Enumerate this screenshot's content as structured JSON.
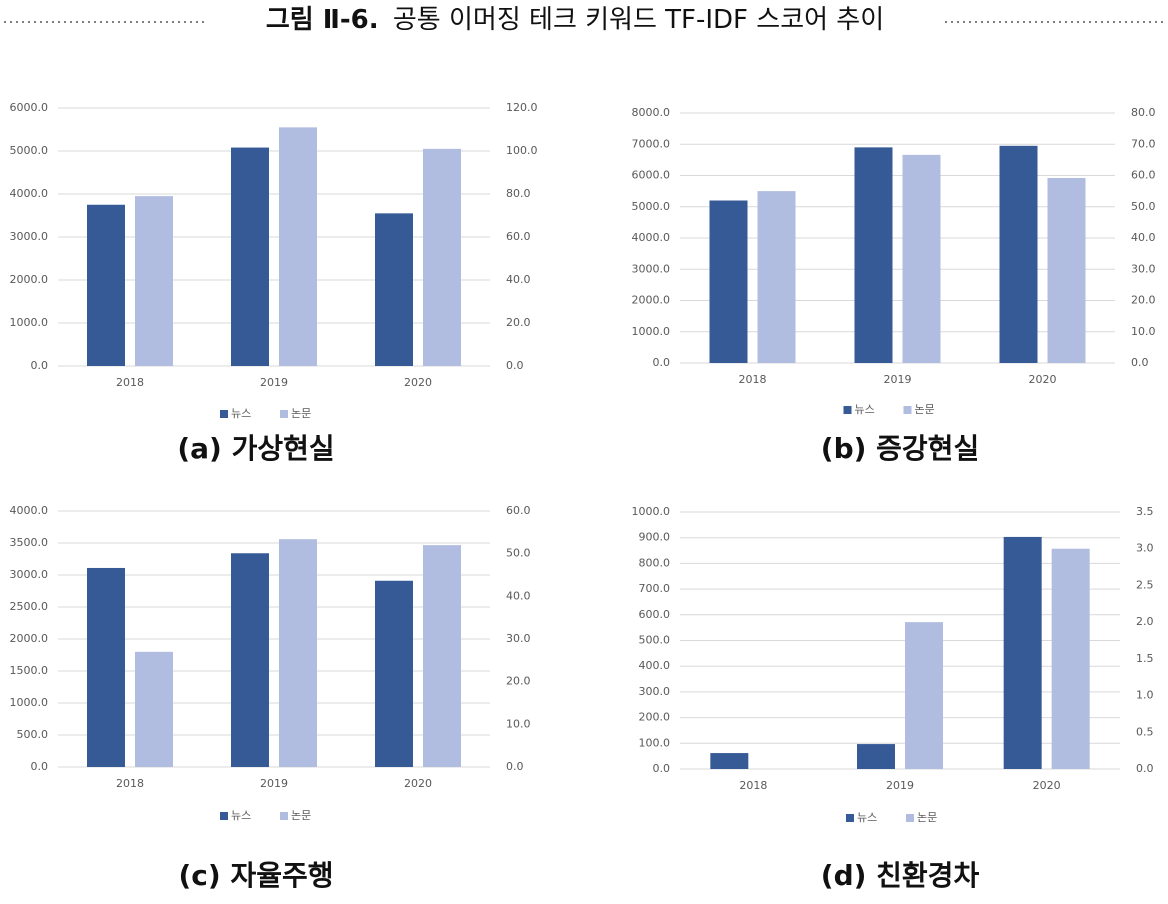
{
  "figure_label": "그림 Ⅱ-6.",
  "title": "공통 이머징 테크 키워드 TF-IDF 스코어 추이",
  "chart_data": [
    {
      "type": "bar",
      "title": "(a) 가상현실",
      "categories": [
        "2018",
        "2019",
        "2020"
      ],
      "series": [
        {
          "name": "뉴스",
          "color": "#365a96",
          "values": [
            3750,
            5080,
            3550
          ]
        },
        {
          "name": "논문",
          "color": "#b0bde0",
          "values": [
            79,
            111,
            101
          ],
          "axis": "y2"
        }
      ],
      "ylim": [
        0,
        6000
      ],
      "yticks": [
        {
          "value": 0,
          "label": "0.0"
        },
        {
          "value": 1000,
          "label": "1000.0"
        },
        {
          "value": 2000,
          "label": "2000.0"
        },
        {
          "value": 3000,
          "label": "3000.0"
        },
        {
          "value": 4000,
          "label": "4000.0"
        },
        {
          "value": 5000,
          "label": "5000.0"
        },
        {
          "value": 6000,
          "label": "6000.0"
        }
      ],
      "y2lim": [
        0,
        120
      ],
      "y2ticks": [
        {
          "value": 0,
          "label": "0.0"
        },
        {
          "value": 20,
          "label": "20.0"
        },
        {
          "value": 40,
          "label": "40.0"
        },
        {
          "value": 60,
          "label": "60.0"
        },
        {
          "value": 80,
          "label": "80.0"
        },
        {
          "value": 100,
          "label": "100.0"
        },
        {
          "value": 120,
          "label": "120.0"
        }
      ],
      "grid": true,
      "legend": "bottom"
    },
    {
      "type": "bar",
      "title": "(b) 증강현실",
      "categories": [
        "2018",
        "2019",
        "2020"
      ],
      "series": [
        {
          "name": "뉴스",
          "color": "#365a96",
          "values": [
            5200,
            6900,
            6950
          ]
        },
        {
          "name": "논문",
          "color": "#b0bde0",
          "values": [
            55,
            66.6,
            59.2
          ],
          "axis": "y2"
        }
      ],
      "ylim": [
        0,
        8000
      ],
      "yticks": [
        {
          "value": 0,
          "label": "0.0"
        },
        {
          "value": 1000,
          "label": "1000.0"
        },
        {
          "value": 2000,
          "label": "2000.0"
        },
        {
          "value": 3000,
          "label": "3000.0"
        },
        {
          "value": 4000,
          "label": "4000.0"
        },
        {
          "value": 5000,
          "label": "5000.0"
        },
        {
          "value": 6000,
          "label": "6000.0"
        },
        {
          "value": 7000,
          "label": "7000.0"
        },
        {
          "value": 8000,
          "label": "8000.0"
        }
      ],
      "y2lim": [
        0,
        80
      ],
      "y2ticks": [
        {
          "value": 0,
          "label": "0.0"
        },
        {
          "value": 10,
          "label": "10.0"
        },
        {
          "value": 20,
          "label": "20.0"
        },
        {
          "value": 30,
          "label": "30.0"
        },
        {
          "value": 40,
          "label": "40.0"
        },
        {
          "value": 50,
          "label": "50.0"
        },
        {
          "value": 60,
          "label": "60.0"
        },
        {
          "value": 70,
          "label": "70.0"
        },
        {
          "value": 80,
          "label": "80.0"
        }
      ],
      "grid": true,
      "legend": "bottom"
    },
    {
      "type": "bar",
      "title": "(c) 자율주행",
      "categories": [
        "2018",
        "2019",
        "2020"
      ],
      "series": [
        {
          "name": "뉴스",
          "color": "#365a96",
          "values": [
            3110,
            3340,
            2910
          ]
        },
        {
          "name": "논문",
          "color": "#b0bde0",
          "values": [
            27,
            53.4,
            52
          ],
          "axis": "y2"
        }
      ],
      "ylim": [
        0,
        4000
      ],
      "yticks": [
        {
          "value": 0,
          "label": "0.0"
        },
        {
          "value": 500,
          "label": "500.0"
        },
        {
          "value": 1000,
          "label": "1000.0"
        },
        {
          "value": 1500,
          "label": "1500.0"
        },
        {
          "value": 2000,
          "label": "2000.0"
        },
        {
          "value": 2500,
          "label": "2500.0"
        },
        {
          "value": 3000,
          "label": "3000.0"
        },
        {
          "value": 3500,
          "label": "3500.0"
        },
        {
          "value": 4000,
          "label": "4000.0"
        }
      ],
      "y2lim": [
        0,
        60
      ],
      "y2ticks": [
        {
          "value": 0,
          "label": "0.0"
        },
        {
          "value": 10,
          "label": "10.0"
        },
        {
          "value": 20,
          "label": "20.0"
        },
        {
          "value": 30,
          "label": "30.0"
        },
        {
          "value": 40,
          "label": "40.0"
        },
        {
          "value": 50,
          "label": "50.0"
        },
        {
          "value": 60,
          "label": "60.0"
        }
      ],
      "grid": true,
      "legend": "bottom"
    },
    {
      "type": "bar",
      "title": "(d) 친환경차",
      "categories": [
        "2018",
        "2019",
        "2020"
      ],
      "series": [
        {
          "name": "뉴스",
          "color": "#365a96",
          "values": [
            62,
            97,
            903
          ]
        },
        {
          "name": "논문",
          "color": "#b0bde0",
          "values": [
            0,
            2.0,
            3.0
          ],
          "axis": "y2"
        }
      ],
      "ylim": [
        0,
        1000
      ],
      "yticks": [
        {
          "value": 0,
          "label": "0.0"
        },
        {
          "value": 100,
          "label": "100.0"
        },
        {
          "value": 200,
          "label": "200.0"
        },
        {
          "value": 300,
          "label": "300.0"
        },
        {
          "value": 400,
          "label": "400.0"
        },
        {
          "value": 500,
          "label": "500.0"
        },
        {
          "value": 600,
          "label": "600.0"
        },
        {
          "value": 700,
          "label": "700.0"
        },
        {
          "value": 800,
          "label": "800.0"
        },
        {
          "value": 900,
          "label": "900.0"
        },
        {
          "value": 1000,
          "label": "1000.0"
        }
      ],
      "y2lim": [
        0,
        3.5
      ],
      "y2ticks": [
        {
          "value": 0,
          "label": "0.0"
        },
        0.5,
        {
          "value": 1,
          "label": "1.0"
        },
        1.5,
        {
          "value": 2,
          "label": "2.0"
        },
        2.5,
        {
          "value": 3,
          "label": "3.0"
        },
        3.5
      ],
      "grid": true,
      "legend": "bottom"
    }
  ]
}
